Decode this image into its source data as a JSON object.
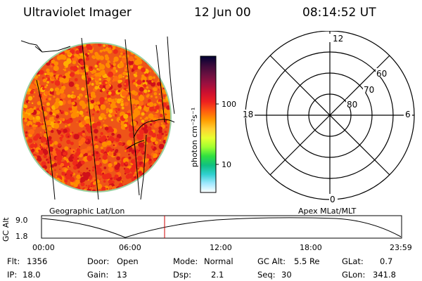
{
  "header": {
    "title": "Ultraviolet Imager",
    "date": "12 Jun 00",
    "time": "08:14:52 UT"
  },
  "colorbar": {
    "unit_label": "photon cm⁻²s⁻¹",
    "ticks": [
      "100",
      "10"
    ],
    "colors": [
      "#000033",
      "#3a0a3a",
      "#6a1040",
      "#9a1040",
      "#cc1030",
      "#ee2020",
      "#ff5a10",
      "#ff9a00",
      "#ffd030",
      "#e8ff30",
      "#a0ff30",
      "#30e040",
      "#10c080",
      "#30d0d0",
      "#a0e8ff",
      "#ffffff"
    ]
  },
  "left_panel": {
    "caption": "Geographic Lat/Lon",
    "colors": [
      "#ff8c00",
      "#ee2a1a",
      "#d0101a",
      "#ffb000",
      "#ff6a10"
    ]
  },
  "right_panel": {
    "caption": "Apex MLat/MLT",
    "mlt_labels": {
      "top": "12",
      "left": "18",
      "right": "6",
      "bottom": "0"
    },
    "mlat_labels": [
      "60",
      "70",
      "80"
    ]
  },
  "altitude_strip": {
    "axis_label": "GC Alt",
    "ymax": "9.0",
    "ymin": "1.8",
    "time_ticks": [
      "00:00",
      "06:00",
      "12:00",
      "18:00",
      "23:59"
    ],
    "current_time_marker_color": "#cc0000"
  },
  "info": {
    "flt_label": "Flt:",
    "flt_value": "1356",
    "ip_label": "IP:",
    "ip_value": "18.0",
    "door_label": "Door:",
    "door_value": "Open",
    "gain_label": "Gain:",
    "gain_value": "13",
    "mode_label": "Mode:",
    "mode_value": "Normal",
    "dsp_label": "Dsp:",
    "dsp_value": "2.1",
    "gcalt_label": "GC Alt:",
    "gcalt_value": "5.5 Re",
    "seq_label": "Seq:",
    "seq_value": "30",
    "glat_label": "GLat:",
    "glat_value": "0.7",
    "glon_label": "GLon:",
    "glon_value": "341.8"
  }
}
